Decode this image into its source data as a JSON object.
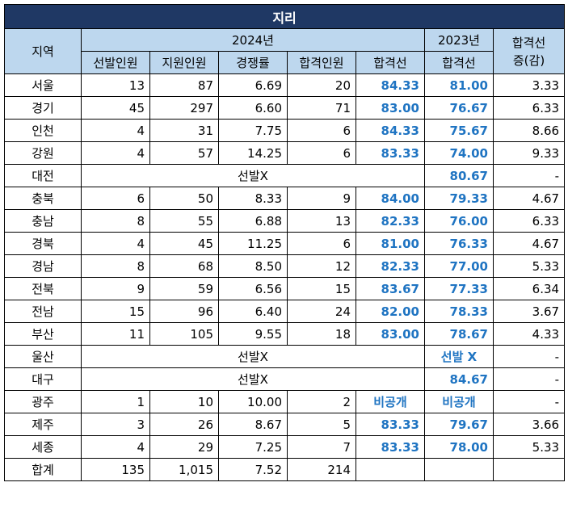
{
  "title": "지리",
  "headers": {
    "region": "지역",
    "year2024": "2024년",
    "year2023": "2023년",
    "change": "합격선\n증(감)",
    "sub": [
      "선발인원",
      "지원인원",
      "경쟁률",
      "합격인원",
      "합격선"
    ],
    "cut2023": "합격선"
  },
  "rows": [
    {
      "region": "서울",
      "selected": "13",
      "applied": "87",
      "ratio": "6.69",
      "passed": "20",
      "cut2024": "84.33",
      "cut2023": "81.00",
      "change": "3.33"
    },
    {
      "region": "경기",
      "selected": "45",
      "applied": "297",
      "ratio": "6.60",
      "passed": "71",
      "cut2024": "83.00",
      "cut2023": "76.67",
      "change": "6.33"
    },
    {
      "region": "인천",
      "selected": "4",
      "applied": "31",
      "ratio": "7.75",
      "passed": "6",
      "cut2024": "84.33",
      "cut2023": "75.67",
      "change": "8.66"
    },
    {
      "region": "강원",
      "selected": "4",
      "applied": "57",
      "ratio": "14.25",
      "passed": "6",
      "cut2024": "83.33",
      "cut2023": "74.00",
      "change": "9.33"
    },
    {
      "region": "대전",
      "merged": "선발X",
      "cut2023": "80.67",
      "change": "-"
    },
    {
      "region": "충북",
      "selected": "6",
      "applied": "50",
      "ratio": "8.33",
      "passed": "9",
      "cut2024": "84.00",
      "cut2023": "79.33",
      "change": "4.67"
    },
    {
      "region": "충남",
      "selected": "8",
      "applied": "55",
      "ratio": "6.88",
      "passed": "13",
      "cut2024": "82.33",
      "cut2023": "76.00",
      "change": "6.33"
    },
    {
      "region": "경북",
      "selected": "4",
      "applied": "45",
      "ratio": "11.25",
      "passed": "6",
      "cut2024": "81.00",
      "cut2023": "76.33",
      "change": "4.67"
    },
    {
      "region": "경남",
      "selected": "8",
      "applied": "68",
      "ratio": "8.50",
      "passed": "12",
      "cut2024": "82.33",
      "cut2023": "77.00",
      "change": "5.33"
    },
    {
      "region": "전북",
      "selected": "9",
      "applied": "59",
      "ratio": "6.56",
      "passed": "15",
      "cut2024": "83.67",
      "cut2023": "77.33",
      "change": "6.34"
    },
    {
      "region": "전남",
      "selected": "15",
      "applied": "96",
      "ratio": "6.40",
      "passed": "24",
      "cut2024": "82.00",
      "cut2023": "78.33",
      "change": "3.67"
    },
    {
      "region": "부산",
      "selected": "11",
      "applied": "105",
      "ratio": "9.55",
      "passed": "18",
      "cut2024": "83.00",
      "cut2023": "78.67",
      "change": "4.33"
    },
    {
      "region": "울산",
      "merged": "선발X",
      "cut2023": "선발 X",
      "change": "-"
    },
    {
      "region": "대구",
      "merged": "선발X",
      "cut2023": "84.67",
      "change": "-"
    },
    {
      "region": "광주",
      "selected": "1",
      "applied": "10",
      "ratio": "10.00",
      "passed": "2",
      "cut2024": "비공개",
      "cut2023": "비공개",
      "change": "-"
    },
    {
      "region": "제주",
      "selected": "3",
      "applied": "26",
      "ratio": "8.67",
      "passed": "5",
      "cut2024": "83.33",
      "cut2023": "79.67",
      "change": "3.66"
    },
    {
      "region": "세종",
      "selected": "4",
      "applied": "29",
      "ratio": "7.25",
      "passed": "7",
      "cut2024": "83.33",
      "cut2023": "78.00",
      "change": "5.33"
    }
  ],
  "total": {
    "region": "합계",
    "selected": "135",
    "applied": "1,015",
    "ratio": "7.52",
    "passed": "214"
  }
}
